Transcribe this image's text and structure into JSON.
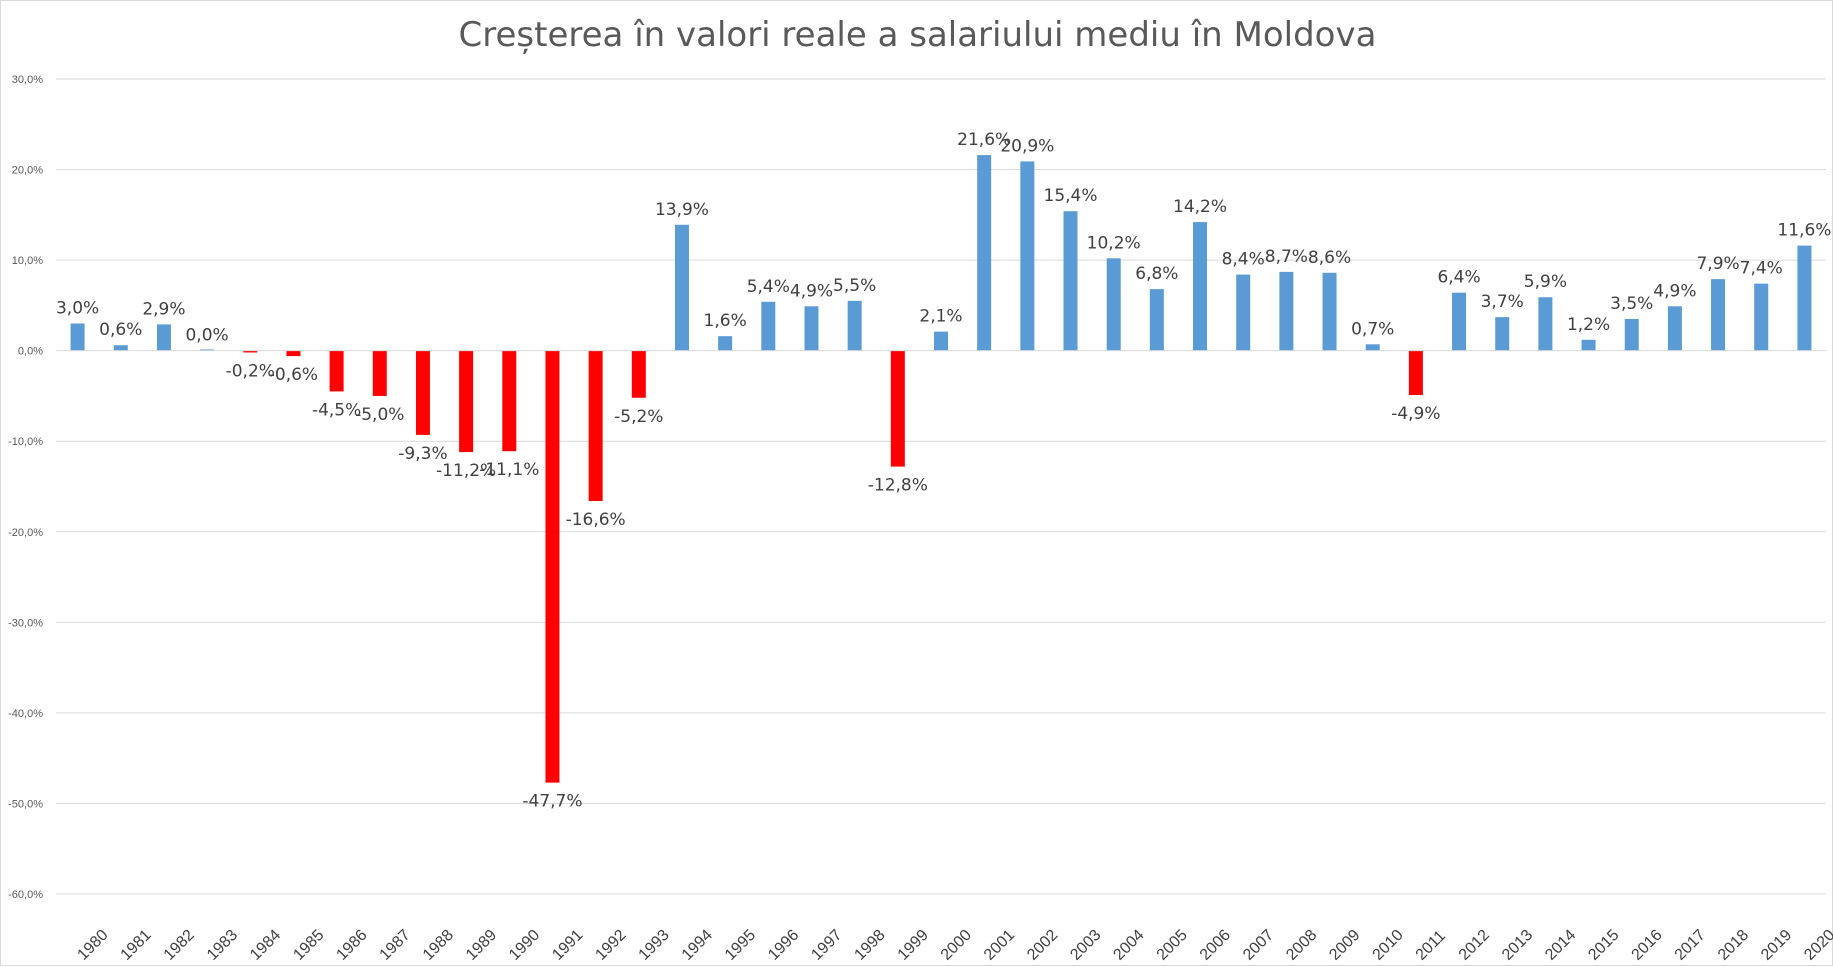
{
  "chart_data": {
    "type": "bar",
    "title": "Creșterea în valori reale a salariului mediu în Moldova",
    "categories": [
      "1980",
      "1981",
      "1982",
      "1983",
      "1984",
      "1985",
      "1986",
      "1987",
      "1988",
      "1989",
      "1990",
      "1991",
      "1992",
      "1993",
      "1994",
      "1995",
      "1996",
      "1997",
      "1998",
      "1999",
      "2000",
      "2001",
      "2002",
      "2003",
      "2004",
      "2005",
      "2006",
      "2007",
      "2008",
      "2009",
      "2010",
      "2011",
      "2012",
      "2013",
      "2014",
      "2015",
      "2016",
      "2017",
      "2018",
      "2019",
      "2020"
    ],
    "values": [
      3.0,
      0.6,
      2.9,
      0.0,
      -0.2,
      -0.6,
      -4.5,
      -5.0,
      -9.3,
      -11.2,
      -11.1,
      -47.7,
      -16.6,
      -5.2,
      13.9,
      1.6,
      5.4,
      4.9,
      5.5,
      -12.8,
      2.1,
      21.6,
      20.9,
      15.4,
      10.2,
      6.8,
      14.2,
      8.4,
      8.7,
      8.6,
      0.7,
      -4.9,
      6.4,
      3.7,
      5.9,
      1.2,
      3.5,
      4.9,
      7.9,
      7.4,
      11.6
    ],
    "data_labels": [
      "3,0%",
      "0,6%",
      "2,9%",
      "0,0%",
      "-0,2%",
      "-0,6%",
      "-4,5%",
      "-5,0%",
      "-9,3%",
      "-11,2%",
      "-11,1%",
      "-47,7%",
      "-16,6%",
      "-5,2%",
      "13,9%",
      "1,6%",
      "5,4%",
      "4,9%",
      "5,5%",
      "-12,8%",
      "2,1%",
      "21,6%",
      "20,9%",
      "15,4%",
      "10,2%",
      "6,8%",
      "14,2%",
      "8,4%",
      "8,7%",
      "8,6%",
      "0,7%",
      "-4,9%",
      "6,4%",
      "3,7%",
      "5,9%",
      "1,2%",
      "3,5%",
      "4,9%",
      "7,9%",
      "7,4%",
      "11,6%"
    ],
    "ylim": [
      -60,
      30
    ],
    "yticks": [
      30,
      20,
      10,
      0,
      -10,
      -20,
      -30,
      -40,
      -50,
      -60
    ],
    "ytick_labels": [
      "30,0%",
      "20,0%",
      "10,0%",
      "0,0%",
      "-10,0%",
      "-20,0%",
      "-30,0%",
      "-40,0%",
      "-50,0%",
      "-60,0%"
    ],
    "xlabel": "",
    "ylabel": "",
    "grid": true,
    "legend": "none",
    "colors": {
      "positive": "#5B9BD5",
      "negative": "#FF0000"
    }
  }
}
